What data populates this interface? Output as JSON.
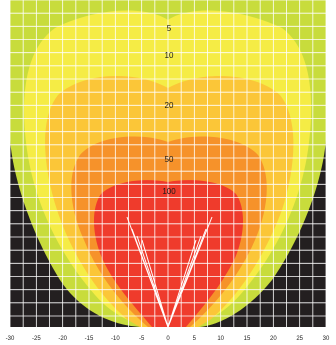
{
  "chart_data": {
    "type": "contour",
    "x_ticks": [
      "-30",
      "-25",
      "-20",
      "-15",
      "-10",
      "-5",
      "0",
      "5",
      "10",
      "15",
      "20",
      "25",
      "30"
    ],
    "xlim": [
      -30,
      30
    ],
    "grid": true,
    "contour_levels": [
      {
        "label": "5",
        "color": "#c8dc3c"
      },
      {
        "label": "10",
        "color": "#f5ec45"
      },
      {
        "label": "20",
        "color": "#fbc638"
      },
      {
        "label": "50",
        "color": "#f6922a"
      },
      {
        "label": "100",
        "color": "#ef3b2c"
      }
    ],
    "background_color": "#231f20",
    "grid_color": "#ffffff",
    "beam_color": "#ffffff"
  }
}
